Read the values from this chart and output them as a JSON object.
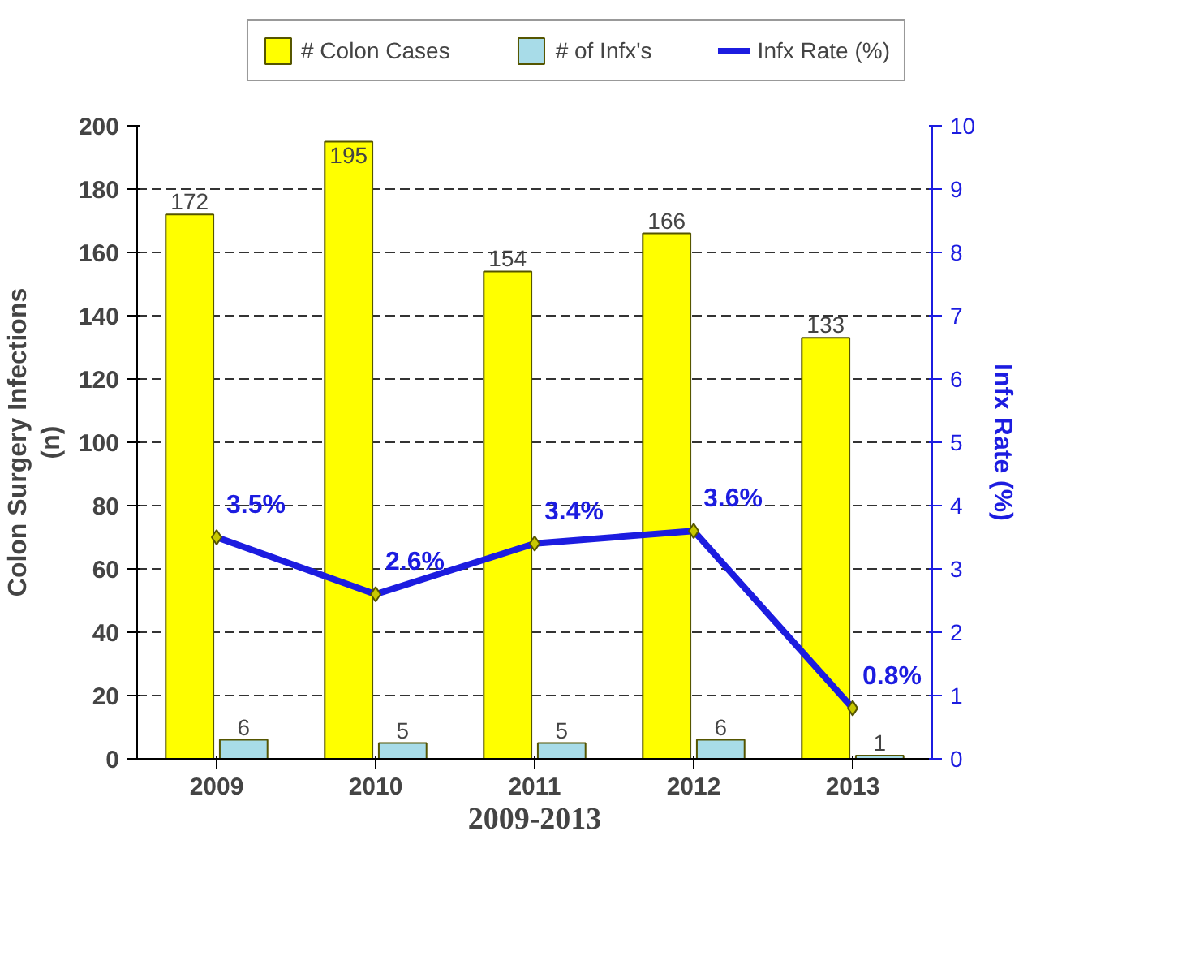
{
  "chart_data": {
    "type": "bar",
    "categories": [
      "2009",
      "2010",
      "2011",
      "2012",
      "2013"
    ],
    "xlabel": "2009-2013",
    "ylabel": "Colon Surgery Infections\n(n)",
    "y2label": "Infx Rate (%)",
    "ylim": [
      0,
      200
    ],
    "yticks": [
      0,
      20,
      40,
      60,
      80,
      100,
      120,
      140,
      160,
      180,
      200
    ],
    "y2lim": [
      0,
      10
    ],
    "y2ticks": [
      0,
      1,
      2,
      3,
      4,
      5,
      6,
      7,
      8,
      9,
      10
    ],
    "series": [
      {
        "name": "# Colon Cases",
        "color": "#ffff00",
        "values": [
          172,
          195,
          154,
          166,
          133
        ]
      },
      {
        "name": "# of Infx's",
        "color": "#a8dce8",
        "values": [
          6,
          5,
          5,
          6,
          1
        ]
      },
      {
        "name": "Infx Rate (%)",
        "type": "line",
        "axis": "y2",
        "color": "#1c1ce0",
        "values": [
          3.5,
          2.6,
          3.4,
          3.6,
          0.8
        ],
        "value_labels": [
          "3.5%",
          "2.6%",
          "3.4%",
          "3.6%",
          "0.8%"
        ],
        "marker": "diamond"
      }
    ],
    "data_labels": true,
    "grid": "y",
    "legend": "top",
    "line_style": "solid"
  }
}
